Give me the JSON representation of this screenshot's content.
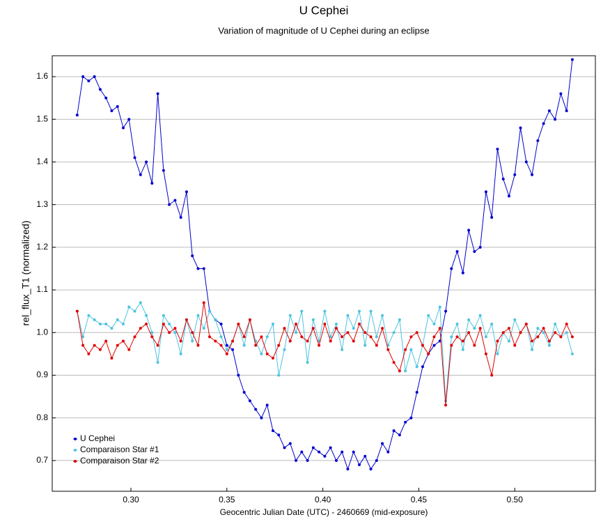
{
  "chart_data": {
    "type": "line",
    "title": "U Cephei",
    "subtitle": "Variation of magnitude of U Cephei during an eclipse",
    "x_label": "Geocentric Julian Date (UTC) - 2460669 (mid-exposure)",
    "y_label": "rel_flux_T1 (normalized)",
    "x": [
      0.272,
      0.275,
      0.278,
      0.281,
      0.284,
      0.287,
      0.29,
      0.293,
      0.296,
      0.299,
      0.302,
      0.305,
      0.308,
      0.311,
      0.314,
      0.317,
      0.32,
      0.323,
      0.326,
      0.329,
      0.332,
      0.335,
      0.338,
      0.341,
      0.344,
      0.347,
      0.35,
      0.353,
      0.356,
      0.359,
      0.362,
      0.365,
      0.368,
      0.371,
      0.374,
      0.377,
      0.38,
      0.383,
      0.386,
      0.389,
      0.392,
      0.395,
      0.398,
      0.401,
      0.404,
      0.407,
      0.41,
      0.413,
      0.416,
      0.419,
      0.422,
      0.425,
      0.428,
      0.431,
      0.434,
      0.437,
      0.44,
      0.443,
      0.446,
      0.449,
      0.452,
      0.455,
      0.458,
      0.461,
      0.464,
      0.467,
      0.47,
      0.473,
      0.476,
      0.479,
      0.482,
      0.485,
      0.488,
      0.491,
      0.494,
      0.497,
      0.5,
      0.503,
      0.506,
      0.509,
      0.512,
      0.515,
      0.518,
      0.521,
      0.524,
      0.527,
      0.53
    ],
    "series": [
      {
        "name": "U Cephei",
        "color": "#0000cc",
        "values": [
          1.51,
          1.6,
          1.59,
          1.6,
          1.57,
          1.55,
          1.52,
          1.53,
          1.48,
          1.5,
          1.41,
          1.37,
          1.4,
          1.35,
          1.56,
          1.38,
          1.3,
          1.31,
          1.27,
          1.33,
          1.18,
          1.15,
          1.15,
          1.05,
          1.03,
          1.02,
          0.97,
          0.96,
          0.9,
          0.86,
          0.84,
          0.82,
          0.8,
          0.83,
          0.77,
          0.76,
          0.73,
          0.74,
          0.7,
          0.72,
          0.7,
          0.73,
          0.72,
          0.71,
          0.73,
          0.7,
          0.72,
          0.68,
          0.72,
          0.69,
          0.71,
          0.68,
          0.7,
          0.74,
          0.72,
          0.77,
          0.76,
          0.79,
          0.8,
          0.86,
          0.92,
          0.95,
          0.97,
          0.98,
          1.05,
          1.15,
          1.19,
          1.14,
          1.24,
          1.19,
          1.2,
          1.33,
          1.27,
          1.43,
          1.36,
          1.32,
          1.37,
          1.48,
          1.4,
          1.37,
          1.45,
          1.49,
          1.52,
          1.5,
          1.56,
          1.52,
          1.64
        ]
      },
      {
        "name": "Comparaison Star #1",
        "color": "#4cc3e0",
        "values": [
          1.05,
          0.99,
          1.04,
          1.03,
          1.02,
          1.02,
          1.01,
          1.03,
          1.02,
          1.06,
          1.05,
          1.07,
          1.04,
          1.0,
          0.93,
          1.04,
          1.02,
          1.0,
          0.95,
          1.03,
          0.98,
          1.04,
          1.01,
          1.05,
          1.03,
          0.99,
          0.96,
          0.98,
          1.02,
          0.97,
          1.03,
          0.98,
          0.95,
          0.99,
          1.02,
          0.9,
          0.96,
          1.04,
          1.0,
          1.05,
          0.93,
          1.03,
          0.98,
          1.05,
          0.99,
          1.02,
          0.96,
          1.04,
          1.01,
          1.05,
          0.97,
          1.05,
          0.99,
          1.04,
          0.97,
          1.0,
          1.03,
          0.91,
          0.96,
          0.92,
          0.97,
          1.04,
          1.02,
          1.06,
          0.84,
          0.99,
          1.02,
          0.96,
          1.03,
          1.01,
          1.04,
          0.99,
          1.02,
          0.95,
          1.0,
          0.98,
          1.03,
          1.0,
          1.02,
          0.96,
          1.01,
          1.0,
          0.97,
          1.02,
          0.99,
          1.0,
          0.95
        ]
      },
      {
        "name": "Comparaison Star #2",
        "color": "#e00000",
        "values": [
          1.05,
          0.97,
          0.95,
          0.97,
          0.96,
          0.98,
          0.94,
          0.97,
          0.98,
          0.96,
          0.99,
          1.01,
          1.02,
          0.99,
          0.97,
          1.02,
          1.0,
          1.01,
          0.98,
          1.03,
          1.0,
          0.97,
          1.07,
          0.99,
          0.98,
          0.97,
          0.95,
          0.98,
          1.02,
          0.99,
          1.03,
          0.97,
          0.99,
          0.95,
          0.94,
          0.97,
          1.01,
          0.98,
          1.02,
          0.99,
          0.98,
          1.01,
          0.97,
          1.02,
          0.98,
          1.01,
          0.99,
          1.0,
          0.98,
          1.02,
          1.0,
          0.99,
          0.97,
          1.01,
          0.96,
          0.93,
          0.91,
          0.96,
          0.99,
          1.0,
          0.97,
          0.95,
          0.99,
          1.01,
          0.83,
          0.97,
          0.99,
          0.98,
          1.0,
          0.97,
          1.01,
          0.95,
          0.9,
          0.98,
          1.0,
          1.01,
          0.97,
          1.0,
          1.02,
          0.98,
          0.99,
          1.01,
          0.98,
          1.0,
          0.99,
          1.02,
          0.99
        ]
      }
    ],
    "xlim": [
      0.259,
      0.542
    ],
    "ylim": [
      0.628,
      1.649
    ],
    "xticks": [
      {
        "value": 0.3,
        "label": "0.30"
      },
      {
        "value": 0.35,
        "label": "0.35"
      },
      {
        "value": 0.4,
        "label": "0.40"
      },
      {
        "value": 0.45,
        "label": "0.45"
      },
      {
        "value": 0.5,
        "label": "0.50"
      }
    ],
    "yticks": [
      0.7,
      0.8,
      0.9,
      {
        "value": 1.0,
        "label": "1.0"
      },
      1.1,
      1.2,
      1.3,
      1.4,
      1.5,
      1.6
    ],
    "grid": true,
    "legend": "lower left"
  }
}
